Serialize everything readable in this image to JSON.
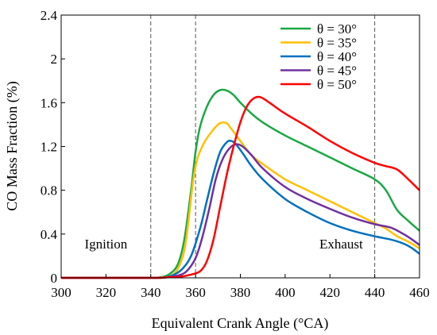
{
  "chart_data": {
    "type": "line",
    "xlabel": "Equivalent Crank Angle  (°CA)",
    "ylabel": "CO Mass Fraction  (%)",
    "xlim": [
      300,
      460
    ],
    "ylim": [
      0,
      2.4
    ],
    "x_ticks": [
      "300",
      "320",
      "340",
      "360",
      "380",
      "400",
      "420",
      "440",
      "460"
    ],
    "y_ticks": [
      "0",
      "0.4",
      "0.8",
      "1.2",
      "1.6",
      "2",
      "2.4"
    ],
    "grid": false,
    "legend_position": "top-right",
    "reference_lines_x": [
      340,
      360,
      440
    ],
    "annotations": [
      {
        "text": "Ignition",
        "x": 320,
        "y": 0.27
      },
      {
        "text": "Exhaust",
        "x": 425,
        "y": 0.27
      }
    ],
    "series": [
      {
        "name": "θ = 30°",
        "color": "#1aa845",
        "points": [
          [
            300,
            0
          ],
          [
            340,
            0
          ],
          [
            344,
            0.005
          ],
          [
            348,
            0.03
          ],
          [
            352,
            0.12
          ],
          [
            355,
            0.35
          ],
          [
            358,
            0.8
          ],
          [
            360,
            1.15
          ],
          [
            362,
            1.38
          ],
          [
            365,
            1.56
          ],
          [
            368,
            1.67
          ],
          [
            371,
            1.715
          ],
          [
            374,
            1.71
          ],
          [
            377,
            1.67
          ],
          [
            380,
            1.6
          ],
          [
            385,
            1.5
          ],
          [
            390,
            1.42
          ],
          [
            400,
            1.3
          ],
          [
            410,
            1.2
          ],
          [
            420,
            1.1
          ],
          [
            430,
            1.0
          ],
          [
            440,
            0.9
          ],
          [
            445,
            0.8
          ],
          [
            450,
            0.62
          ],
          [
            455,
            0.52
          ],
          [
            460,
            0.43
          ]
        ]
      },
      {
        "name": "θ = 35°",
        "color": "#ffc000",
        "points": [
          [
            300,
            0
          ],
          [
            340,
            0
          ],
          [
            345,
            0.005
          ],
          [
            349,
            0.02
          ],
          [
            352,
            0.08
          ],
          [
            355,
            0.25
          ],
          [
            357,
            0.55
          ],
          [
            359,
            0.9
          ],
          [
            361,
            1.1
          ],
          [
            364,
            1.24
          ],
          [
            367,
            1.33
          ],
          [
            370,
            1.4
          ],
          [
            372,
            1.42
          ],
          [
            374,
            1.41
          ],
          [
            376,
            1.36
          ],
          [
            380,
            1.25
          ],
          [
            385,
            1.12
          ],
          [
            390,
            1.04
          ],
          [
            400,
            0.9
          ],
          [
            410,
            0.8
          ],
          [
            420,
            0.7
          ],
          [
            430,
            0.6
          ],
          [
            440,
            0.5
          ],
          [
            445,
            0.45
          ],
          [
            450,
            0.38
          ],
          [
            455,
            0.33
          ],
          [
            460,
            0.27
          ]
        ]
      },
      {
        "name": "θ = 40°",
        "color": "#0070c0",
        "points": [
          [
            300,
            0
          ],
          [
            340,
            0
          ],
          [
            346,
            0.005
          ],
          [
            350,
            0.025
          ],
          [
            354,
            0.08
          ],
          [
            358,
            0.2
          ],
          [
            362,
            0.45
          ],
          [
            365,
            0.7
          ],
          [
            368,
            0.95
          ],
          [
            371,
            1.15
          ],
          [
            374,
            1.24
          ],
          [
            376,
            1.25
          ],
          [
            378,
            1.22
          ],
          [
            381,
            1.14
          ],
          [
            385,
            1.02
          ],
          [
            390,
            0.9
          ],
          [
            400,
            0.72
          ],
          [
            410,
            0.6
          ],
          [
            420,
            0.5
          ],
          [
            430,
            0.43
          ],
          [
            440,
            0.38
          ],
          [
            447,
            0.35
          ],
          [
            452,
            0.32
          ],
          [
            456,
            0.28
          ],
          [
            460,
            0.22
          ]
        ]
      },
      {
        "name": "θ = 45°",
        "color": "#7030a0",
        "points": [
          [
            300,
            0
          ],
          [
            340,
            0
          ],
          [
            347,
            0.005
          ],
          [
            352,
            0.02
          ],
          [
            356,
            0.06
          ],
          [
            360,
            0.18
          ],
          [
            363,
            0.37
          ],
          [
            366,
            0.62
          ],
          [
            369,
            0.9
          ],
          [
            372,
            1.08
          ],
          [
            375,
            1.18
          ],
          [
            378,
            1.22
          ],
          [
            381,
            1.2
          ],
          [
            385,
            1.12
          ],
          [
            390,
            1.0
          ],
          [
            400,
            0.83
          ],
          [
            410,
            0.72
          ],
          [
            420,
            0.63
          ],
          [
            430,
            0.55
          ],
          [
            440,
            0.49
          ],
          [
            447,
            0.46
          ],
          [
            452,
            0.41
          ],
          [
            456,
            0.36
          ],
          [
            460,
            0.3
          ]
        ]
      },
      {
        "name": "θ = 50°",
        "color": "#ff0000",
        "points": [
          [
            300,
            0
          ],
          [
            340,
            0
          ],
          [
            348,
            0.005
          ],
          [
            353,
            0.01
          ],
          [
            358,
            0.03
          ],
          [
            362,
            0.06
          ],
          [
            365,
            0.15
          ],
          [
            368,
            0.35
          ],
          [
            371,
            0.65
          ],
          [
            374,
            0.95
          ],
          [
            377,
            1.2
          ],
          [
            380,
            1.42
          ],
          [
            383,
            1.57
          ],
          [
            386,
            1.64
          ],
          [
            389,
            1.65
          ],
          [
            393,
            1.6
          ],
          [
            400,
            1.5
          ],
          [
            410,
            1.38
          ],
          [
            420,
            1.25
          ],
          [
            430,
            1.14
          ],
          [
            440,
            1.05
          ],
          [
            445,
            1.02
          ],
          [
            450,
            0.99
          ],
          [
            455,
            0.9
          ],
          [
            460,
            0.8
          ]
        ]
      }
    ]
  }
}
